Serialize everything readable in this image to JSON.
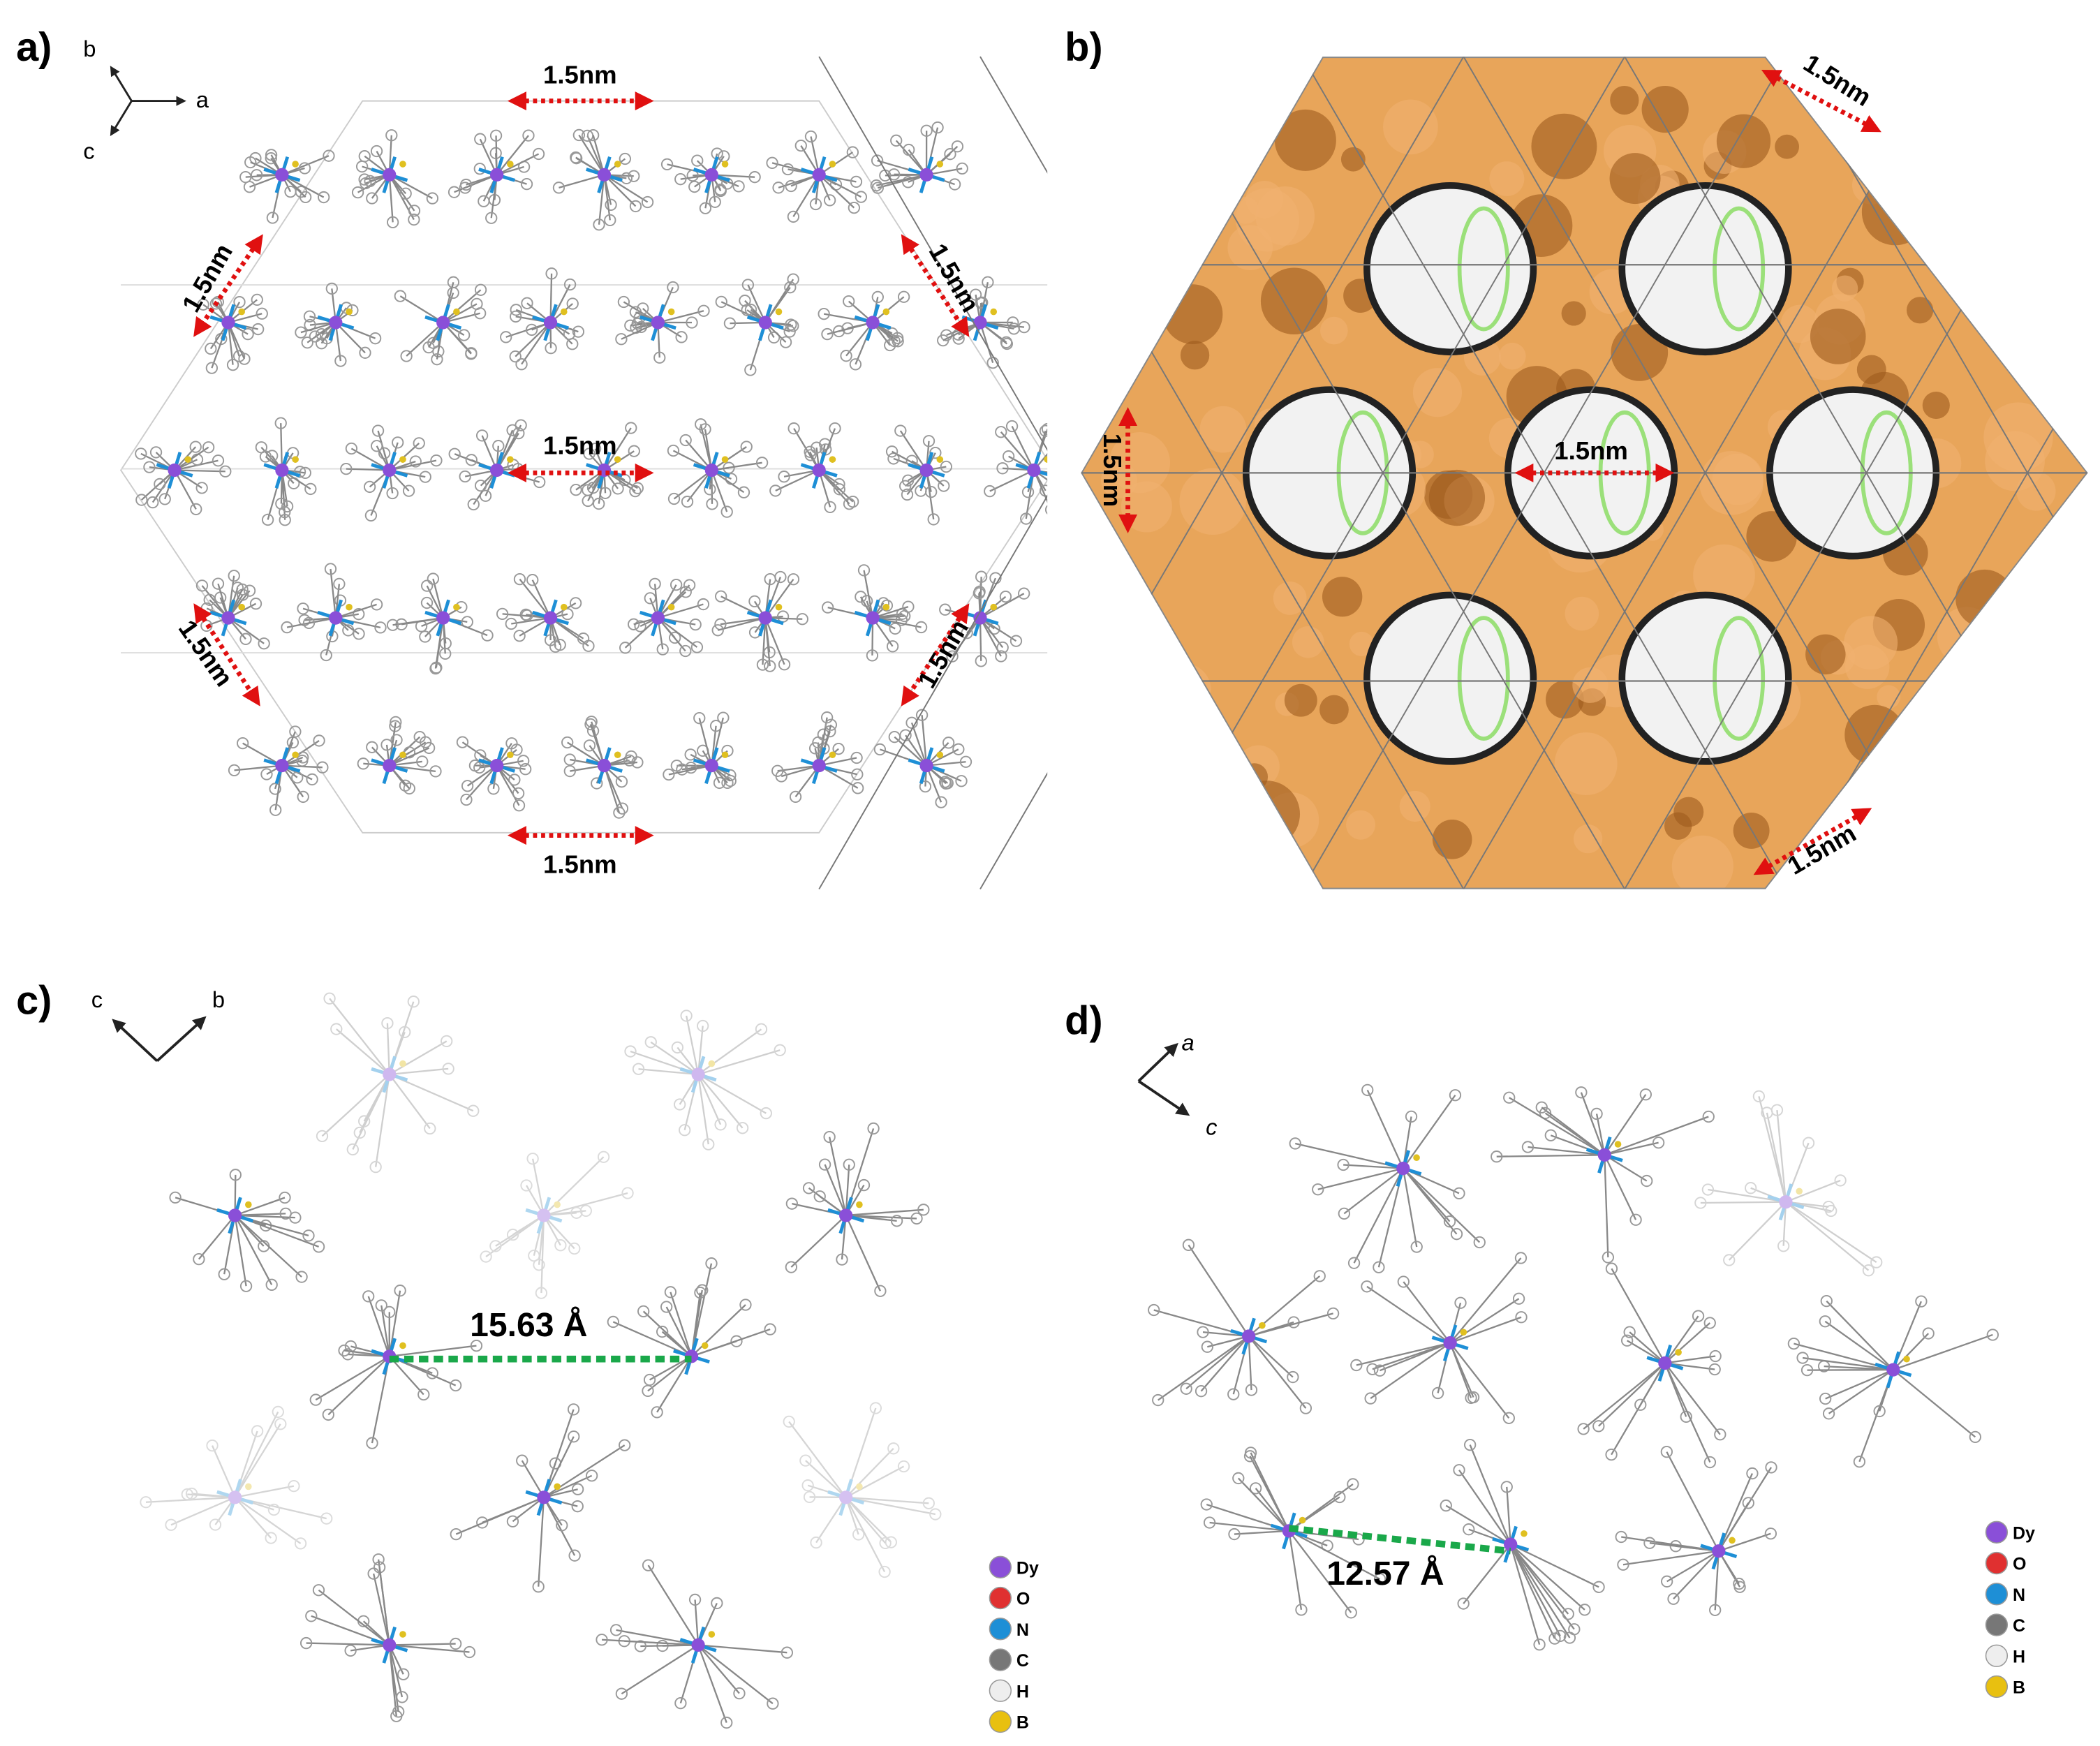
{
  "panels": [
    {
      "label": "a)",
      "axes": [
        "b",
        "a",
        "c"
      ],
      "annotations": [
        "1.5nm",
        "1.5nm",
        "1.5nm",
        "1.5nm",
        "1.5nm",
        "1.5nm",
        "1.5nm"
      ]
    },
    {
      "label": "b)",
      "annotations": [
        "1.5nm",
        "1.5nm",
        "1.5nm",
        "1.5nm"
      ]
    },
    {
      "label": "c)",
      "axes": [
        "c",
        "b"
      ],
      "annotations": [
        "15.63 Å"
      ],
      "legend": [
        "Dy",
        "O",
        "N",
        "C",
        "H",
        "B"
      ]
    },
    {
      "label": "d)",
      "axes": [
        "a",
        "c"
      ],
      "annotations": [
        "12.57 Å"
      ],
      "legend": [
        "Dy",
        "O",
        "N",
        "C",
        "H",
        "B"
      ]
    }
  ]
}
